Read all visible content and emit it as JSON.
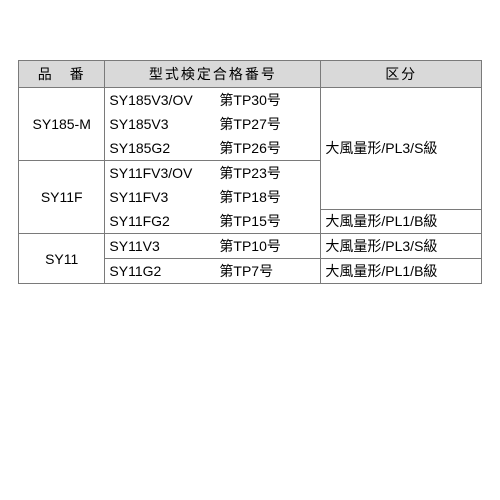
{
  "headers": {
    "partno": "品　番",
    "model": "型式検定合格番号",
    "class": "区分"
  },
  "g1": {
    "partno": "SY185-M",
    "rows": [
      {
        "left": "SY185V3/OV",
        "right": "第TP30号"
      },
      {
        "left": "SY185V3",
        "right": "第TP27号"
      },
      {
        "left": "SY185G2",
        "right": "第TP26号"
      }
    ],
    "class_top": "大風量形/PL3/S級"
  },
  "g2": {
    "partno": "SY11F",
    "rows": [
      {
        "left": "SY11FV3/OV",
        "right": "第TP23号"
      },
      {
        "left": "SY11FV3",
        "right": "第TP18号"
      },
      {
        "left": "SY11FG2",
        "right": "第TP15号"
      }
    ],
    "class_bottom": "大風量形/PL1/B級"
  },
  "g3": {
    "partno": "SY11",
    "rows": [
      {
        "left": "SY11V3",
        "right": "第TP10号",
        "class": "大風量形/PL3/S級"
      },
      {
        "left": "SY11G2",
        "right": "第TP7号",
        "class": "大風量形/PL1/B級"
      }
    ]
  },
  "colors": {
    "header_bg": "#d9d9d9",
    "border": "#7a7a7a",
    "text": "#000000"
  }
}
